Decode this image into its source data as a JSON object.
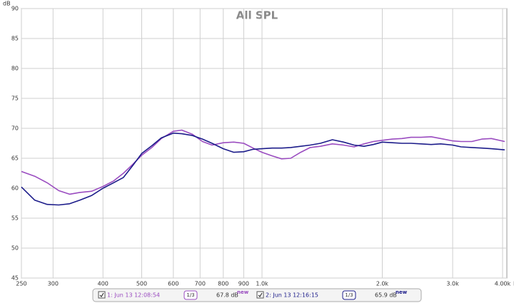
{
  "chart_data": {
    "type": "line",
    "title": "All SPL",
    "ylabel": "dB",
    "x_unit": "Hz",
    "xscale": "log",
    "grid": true,
    "xlim": [
      250,
      4100
    ],
    "ylim": [
      45,
      90
    ],
    "yticks": [
      45,
      50,
      55,
      60,
      65,
      70,
      75,
      80,
      85,
      90
    ],
    "xticks": [
      250,
      300,
      400,
      500,
      600,
      700,
      800,
      900,
      {
        "value": 1000,
        "label": "1.0k"
      },
      {
        "value": 2000,
        "label": "2.0k"
      },
      {
        "value": 3000,
        "label": "3.0k"
      },
      {
        "value": 4000,
        "label": "4.00k"
      }
    ],
    "x": [
      250,
      270,
      290,
      310,
      330,
      350,
      375,
      400,
      425,
      450,
      475,
      500,
      530,
      560,
      600,
      630,
      670,
      710,
      750,
      800,
      850,
      900,
      950,
      1000,
      1060,
      1120,
      1180,
      1250,
      1320,
      1400,
      1500,
      1600,
      1700,
      1800,
      1900,
      2000,
      2120,
      2240,
      2360,
      2500,
      2650,
      2800,
      3000,
      3150,
      3350,
      3550,
      3750,
      4050
    ],
    "series": [
      {
        "name": "1: Jun 13 12:08:54",
        "color": "#9a4cc0",
        "smoothing": "1/3",
        "level": "67.8 dB",
        "badge": "new",
        "values": [
          62.8,
          62.0,
          60.9,
          59.6,
          59.0,
          59.3,
          59.5,
          60.3,
          61.2,
          62.5,
          64.0,
          65.5,
          66.8,
          68.3,
          69.5,
          69.7,
          69.0,
          67.8,
          67.2,
          67.6,
          67.7,
          67.5,
          66.7,
          66.0,
          65.4,
          64.9,
          65.0,
          66.0,
          66.8,
          67.0,
          67.4,
          67.2,
          66.9,
          67.4,
          67.8,
          68.0,
          68.2,
          68.3,
          68.5,
          68.5,
          68.6,
          68.3,
          67.9,
          67.8,
          67.8,
          68.2,
          68.3,
          67.8
        ]
      },
      {
        "name": "2: Jun 13 12:16:15",
        "color": "#1c1c8a",
        "smoothing": "1/3",
        "level": "65.9 dB",
        "badge": "new",
        "values": [
          60.2,
          58.0,
          57.3,
          57.2,
          57.4,
          58.0,
          58.8,
          60.0,
          60.9,
          61.8,
          63.8,
          65.8,
          67.1,
          68.4,
          69.2,
          69.1,
          68.8,
          68.2,
          67.5,
          66.6,
          66.0,
          66.1,
          66.5,
          66.6,
          66.7,
          66.7,
          66.8,
          67.0,
          67.2,
          67.5,
          68.1,
          67.7,
          67.2,
          67.0,
          67.3,
          67.7,
          67.6,
          67.5,
          67.5,
          67.4,
          67.3,
          67.4,
          67.2,
          66.9,
          66.8,
          66.7,
          66.6,
          66.4
        ]
      }
    ]
  }
}
